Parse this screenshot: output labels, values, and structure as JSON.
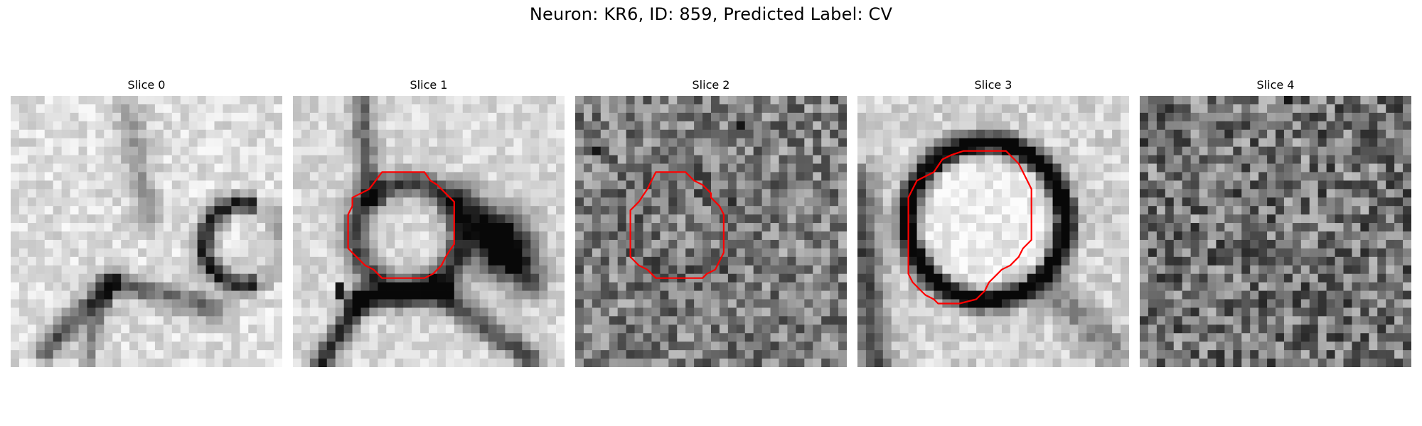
{
  "figure": {
    "title": "Neuron: KR6, ID: 859, Predicted Label: CV"
  },
  "panels": [
    {
      "title": "Slice 0",
      "has_contour": false
    },
    {
      "title": "Slice 1",
      "has_contour": true
    },
    {
      "title": "Slice 2",
      "has_contour": true
    },
    {
      "title": "Slice 3",
      "has_contour": true
    },
    {
      "title": "Slice 4",
      "has_contour": false
    }
  ],
  "colors": {
    "contour": "#ff0000"
  }
}
